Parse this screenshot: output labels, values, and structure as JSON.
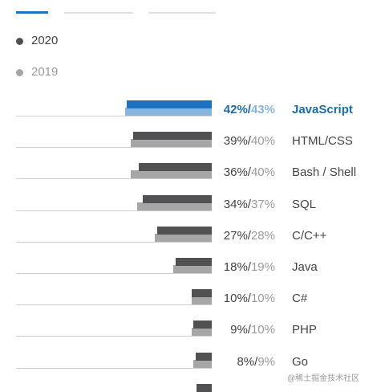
{
  "tabs": [
    "",
    "",
    ""
  ],
  "colors": {
    "y2020": "#515154",
    "y2019": "#a6a6a6",
    "highlight2020": "#1b72c0",
    "highlight2019": "#87b5dd",
    "text2020": "#444444",
    "text2019": "#9a9a9a",
    "highlightText": "#1b6ca8",
    "highlightText2019": "#87b5dd"
  },
  "legend": [
    {
      "label": "2020",
      "color": "#515154"
    },
    {
      "label": "2019",
      "color": "#a6a6a6"
    }
  ],
  "chart_data": {
    "type": "bar",
    "orientation": "horizontal",
    "title": "",
    "xlabel": "",
    "ylabel": "",
    "xlim": [
      0,
      100
    ],
    "grid": false,
    "legend_position": "top-left",
    "categories": [
      "JavaScript",
      "HTML/CSS",
      "Bash / Shell",
      "SQL",
      "C/C++",
      "Java",
      "C#",
      "PHP",
      "Go"
    ],
    "series": [
      {
        "name": "2020",
        "values": [
          42,
          39,
          36,
          34,
          27,
          18,
          10,
          9,
          8
        ]
      },
      {
        "name": "2019",
        "values": [
          43,
          40,
          40,
          37,
          28,
          19,
          10,
          10,
          9
        ]
      }
    ],
    "highlighted_category": "JavaScript"
  },
  "watermark": "@稀土掘金技术社区"
}
